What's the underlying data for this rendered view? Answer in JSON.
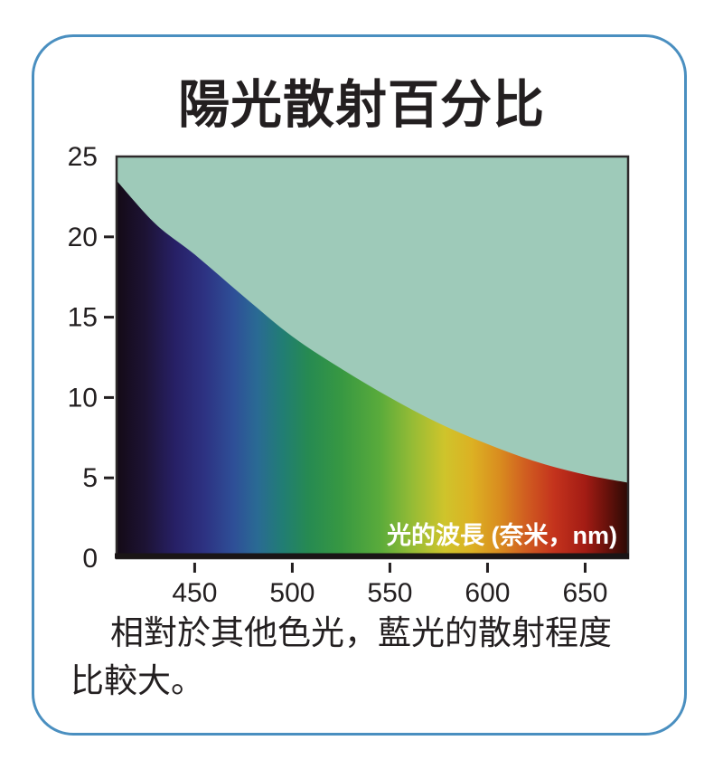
{
  "title": "陽光散射百分比",
  "caption": "相對於其他色光，藍光的散射程度比較大。",
  "colors": {
    "card_border_blue": "#4a8fc0",
    "sky_teal_background": "#9ecab9",
    "axis_and_text": "#231f20",
    "x_label_text": "#ffffff"
  },
  "chart_data": {
    "type": "area",
    "title": "陽光散射百分比",
    "xlabel": "光的波長 (奈米，nm)",
    "ylabel": "",
    "xlim": [
      410,
      672
    ],
    "ylim": [
      0,
      25
    ],
    "xticks": [
      450,
      500,
      550,
      600,
      650
    ],
    "yticks": [
      0,
      5,
      10,
      15,
      20,
      25
    ],
    "grid": false,
    "legend": "none",
    "series": [
      {
        "name": "散射百分比",
        "x": [
          410,
          430,
          450,
          475,
          500,
          525,
          550,
          575,
          600,
          625,
          650,
          672
        ],
        "y": [
          23.5,
          20.8,
          18.9,
          16.3,
          13.8,
          11.8,
          10.0,
          8.4,
          7.1,
          6.0,
          5.2,
          4.7
        ]
      }
    ],
    "area_fill": "visible-light-spectrum-gradient",
    "background_above_curve": "#9ecab9",
    "spectrum_stops": [
      {
        "wavelength": 410,
        "color": "#140a16"
      },
      {
        "wavelength": 425,
        "color": "#1d1335"
      },
      {
        "wavelength": 440,
        "color": "#272066"
      },
      {
        "wavelength": 455,
        "color": "#2d3282"
      },
      {
        "wavelength": 470,
        "color": "#2e4f97"
      },
      {
        "wavelength": 482,
        "color": "#2a6a94"
      },
      {
        "wavelength": 495,
        "color": "#217d74"
      },
      {
        "wavelength": 508,
        "color": "#268a52"
      },
      {
        "wavelength": 525,
        "color": "#379842"
      },
      {
        "wavelength": 545,
        "color": "#5aab3b"
      },
      {
        "wavelength": 562,
        "color": "#97bc35"
      },
      {
        "wavelength": 578,
        "color": "#cfc42b"
      },
      {
        "wavelength": 592,
        "color": "#dcb123"
      },
      {
        "wavelength": 606,
        "color": "#d98d1f"
      },
      {
        "wavelength": 620,
        "color": "#d05c20"
      },
      {
        "wavelength": 634,
        "color": "#c4331d"
      },
      {
        "wavelength": 650,
        "color": "#a31c14"
      },
      {
        "wavelength": 660,
        "color": "#6e120c"
      },
      {
        "wavelength": 672,
        "color": "#2b0a05"
      }
    ]
  }
}
